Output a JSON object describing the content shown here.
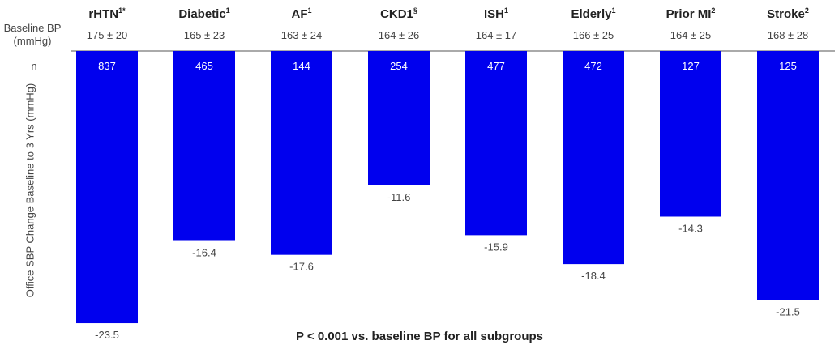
{
  "header": {
    "baseline_label_line1": "Baseline BP",
    "baseline_label_line2": "(mmHg)",
    "n_label": "n"
  },
  "footnote": "P < 0.001 vs. baseline BP for all subgroups",
  "chart_data": {
    "type": "bar",
    "title": "",
    "ylabel": "Office SBP Change Baseline to 3 Yrs (mmHg)",
    "xlabel": "",
    "ylim": [
      -25,
      0
    ],
    "bar_color": "#0000ee",
    "categories": [
      {
        "name": "rHTN",
        "sup": "1*",
        "baseline": "175 ± 20",
        "n": "837"
      },
      {
        "name": "Diabetic",
        "sup": "1",
        "baseline": "165 ± 23",
        "n": "465"
      },
      {
        "name": "AF",
        "sup": "1",
        "baseline": "163 ± 24",
        "n": "144"
      },
      {
        "name": "CKD1",
        "sup": "§",
        "baseline": "164 ± 26",
        "n": "254"
      },
      {
        "name": "ISH",
        "sup": "1",
        "baseline": "164 ± 17",
        "n": "477"
      },
      {
        "name": "Elderly",
        "sup": "1",
        "baseline": "166 ± 25",
        "n": "472"
      },
      {
        "name": "Prior MI",
        "sup": "2",
        "baseline": "164 ± 25",
        "n": "127"
      },
      {
        "name": "Stroke",
        "sup": "2",
        "baseline": "168 ± 28",
        "n": "125"
      }
    ],
    "values": [
      -23.5,
      -16.4,
      -17.6,
      -11.6,
      -15.9,
      -18.4,
      -14.3,
      -21.5
    ]
  }
}
